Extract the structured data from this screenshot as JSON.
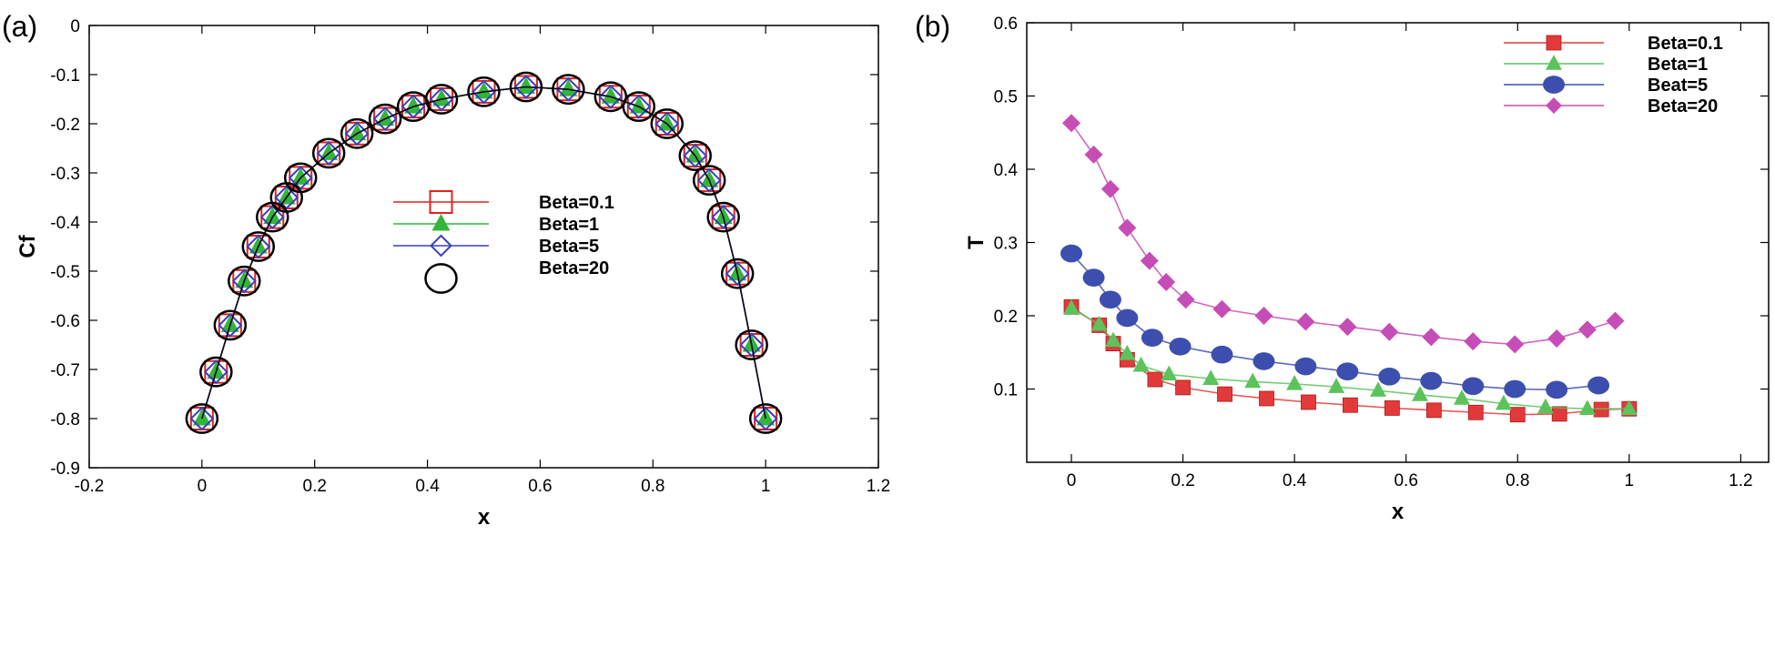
{
  "figure": {
    "panel_a_tag": "(a)",
    "panel_b_tag": "(b)"
  },
  "chart_data": [
    {
      "type": "line",
      "title": "",
      "xlabel": "x",
      "ylabel": "Cf",
      "xlim": [
        -0.2,
        1.2
      ],
      "ylim": [
        -0.9,
        0
      ],
      "xticks": [
        -0.2,
        0,
        0.2,
        0.4,
        0.6,
        0.8,
        1,
        1.2
      ],
      "xtick_labels": [
        "-0.2",
        "0",
        "0.2",
        "0.4",
        "0.6",
        "0.8",
        "1",
        "1.2"
      ],
      "yticks": [
        0,
        -0.1,
        -0.2,
        -0.3,
        -0.4,
        -0.5,
        -0.6,
        -0.7,
        -0.8,
        -0.9
      ],
      "ytick_labels": [
        "0",
        "-0.1",
        "-0.2",
        "-0.3",
        "-0.4",
        "-0.5",
        "-0.6",
        "-0.7",
        "-0.8",
        "-0.9"
      ],
      "grid": false,
      "legend_position": "center",
      "x": [
        0,
        0.025,
        0.05,
        0.075,
        0.1,
        0.125,
        0.15,
        0.175,
        0.225,
        0.275,
        0.325,
        0.375,
        0.425,
        0.5,
        0.575,
        0.65,
        0.725,
        0.775,
        0.825,
        0.875,
        0.9,
        0.925,
        0.95,
        0.975,
        1
      ],
      "series": [
        {
          "name": "Beta=0.1",
          "color": "#e32020",
          "marker": "square-open",
          "values": [
            -0.8,
            -0.705,
            -0.61,
            -0.52,
            -0.45,
            -0.39,
            -0.35,
            -0.31,
            -0.26,
            -0.22,
            -0.19,
            -0.165,
            -0.15,
            -0.135,
            -0.125,
            -0.13,
            -0.145,
            -0.165,
            -0.2,
            -0.265,
            -0.315,
            -0.39,
            -0.505,
            -0.65,
            -0.8
          ]
        },
        {
          "name": "Beta=1",
          "color": "#33b53a",
          "marker": "triangle-filled",
          "values": [
            -0.8,
            -0.705,
            -0.61,
            -0.52,
            -0.45,
            -0.39,
            -0.35,
            -0.31,
            -0.26,
            -0.22,
            -0.19,
            -0.165,
            -0.15,
            -0.135,
            -0.125,
            -0.13,
            -0.145,
            -0.165,
            -0.2,
            -0.265,
            -0.315,
            -0.39,
            -0.505,
            -0.65,
            -0.8
          ]
        },
        {
          "name": "Beta=5",
          "color": "#3a3fbf",
          "marker": "diamond-open",
          "values": [
            -0.8,
            -0.705,
            -0.61,
            -0.52,
            -0.45,
            -0.39,
            -0.35,
            -0.31,
            -0.26,
            -0.22,
            -0.19,
            -0.165,
            -0.15,
            -0.135,
            -0.125,
            -0.13,
            -0.145,
            -0.165,
            -0.2,
            -0.265,
            -0.315,
            -0.39,
            -0.505,
            -0.65,
            -0.8
          ]
        },
        {
          "name": "Beta=20",
          "color": "#000000",
          "marker": "circle-open",
          "values": [
            -0.8,
            -0.705,
            -0.61,
            -0.52,
            -0.45,
            -0.39,
            -0.35,
            -0.31,
            -0.26,
            -0.22,
            -0.19,
            -0.165,
            -0.15,
            -0.135,
            -0.125,
            -0.13,
            -0.145,
            -0.165,
            -0.2,
            -0.265,
            -0.315,
            -0.39,
            -0.505,
            -0.65,
            -0.8
          ]
        }
      ]
    },
    {
      "type": "line",
      "title": "",
      "xlabel": "x",
      "ylabel": "T",
      "xlim": [
        -0.08,
        1.25
      ],
      "ylim": [
        0,
        0.6
      ],
      "xticks": [
        0,
        0.2,
        0.4,
        0.6,
        0.8,
        1,
        1.2
      ],
      "xtick_labels": [
        "0",
        "0.2",
        "0.4",
        "0.6",
        "0.8",
        "1",
        "1.2"
      ],
      "yticks": [
        0.1,
        0.2,
        0.3,
        0.4,
        0.5,
        0.6
      ],
      "ytick_labels": [
        "0.1",
        "0.2",
        "0.3",
        "0.4",
        "0.5",
        "0.6"
      ],
      "grid": false,
      "legend_position": "top-right",
      "series": [
        {
          "name": "Beta=0.1",
          "color": "#e23a3a",
          "marker": "square-filled",
          "x": [
            0,
            0.05,
            0.075,
            0.1,
            0.15,
            0.2,
            0.275,
            0.35,
            0.425,
            0.5,
            0.575,
            0.65,
            0.725,
            0.8,
            0.875,
            0.95,
            1
          ],
          "values": [
            0.212,
            0.187,
            0.162,
            0.14,
            0.113,
            0.102,
            0.093,
            0.087,
            0.082,
            0.078,
            0.074,
            0.071,
            0.068,
            0.065,
            0.066,
            0.072,
            0.073
          ]
        },
        {
          "name": "Beta=1",
          "color": "#5cc35c",
          "marker": "triangle-filled",
          "x": [
            0,
            0.05,
            0.075,
            0.1,
            0.125,
            0.175,
            0.25,
            0.325,
            0.4,
            0.475,
            0.55,
            0.625,
            0.7,
            0.775,
            0.85,
            0.925,
            1
          ],
          "values": [
            0.21,
            0.188,
            0.166,
            0.148,
            0.132,
            0.12,
            0.114,
            0.11,
            0.107,
            0.103,
            0.098,
            0.092,
            0.087,
            0.08,
            0.075,
            0.073,
            0.073
          ]
        },
        {
          "name": "Beat=5",
          "color": "#3d4fae",
          "marker": "circle-filled",
          "x": [
            0,
            0.04,
            0.07,
            0.1,
            0.145,
            0.195,
            0.27,
            0.345,
            0.42,
            0.495,
            0.57,
            0.645,
            0.72,
            0.795,
            0.87,
            0.945
          ],
          "values": [
            0.285,
            0.252,
            0.222,
            0.197,
            0.17,
            0.158,
            0.147,
            0.138,
            0.131,
            0.124,
            0.117,
            0.111,
            0.104,
            0.1,
            0.099,
            0.105
          ]
        },
        {
          "name": "Beta=20",
          "color": "#c64db6",
          "marker": "diamond-filled",
          "x": [
            0,
            0.04,
            0.07,
            0.1,
            0.14,
            0.17,
            0.205,
            0.27,
            0.345,
            0.42,
            0.495,
            0.57,
            0.645,
            0.72,
            0.795,
            0.87,
            0.925,
            0.975
          ],
          "values": [
            0.463,
            0.42,
            0.373,
            0.32,
            0.275,
            0.246,
            0.222,
            0.209,
            0.2,
            0.192,
            0.185,
            0.178,
            0.171,
            0.165,
            0.161,
            0.169,
            0.181,
            0.193
          ]
        }
      ]
    }
  ]
}
